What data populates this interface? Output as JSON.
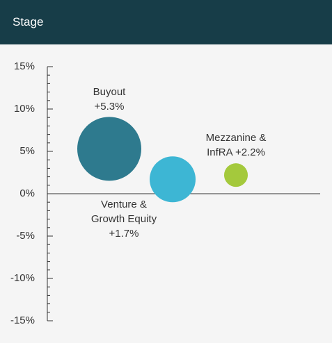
{
  "header": {
    "title": "Stage"
  },
  "chart_data": {
    "type": "bubble",
    "categories": [
      "Buyout",
      "Venture & Growth Equity",
      "Mezzanine & InfRA"
    ],
    "values": [
      5.3,
      1.7,
      2.2
    ],
    "value_labels": [
      "+5.3%",
      "+1.7%",
      "+2.2%"
    ],
    "sizes": [
      46,
      33,
      17
    ],
    "colors": [
      "#2e7a8e",
      "#3db6d4",
      "#a4c93c"
    ],
    "ylim": [
      -15,
      15
    ],
    "yticks": [
      {
        "value": 15,
        "label": "15%"
      },
      {
        "value": 10,
        "label": "10%"
      },
      {
        "value": 5,
        "label": "5%"
      },
      {
        "value": 0,
        "label": "0%"
      },
      {
        "value": -5,
        "label": "-5%"
      },
      {
        "value": -10,
        "label": "-10%"
      },
      {
        "value": -15,
        "label": "-15%"
      }
    ]
  }
}
